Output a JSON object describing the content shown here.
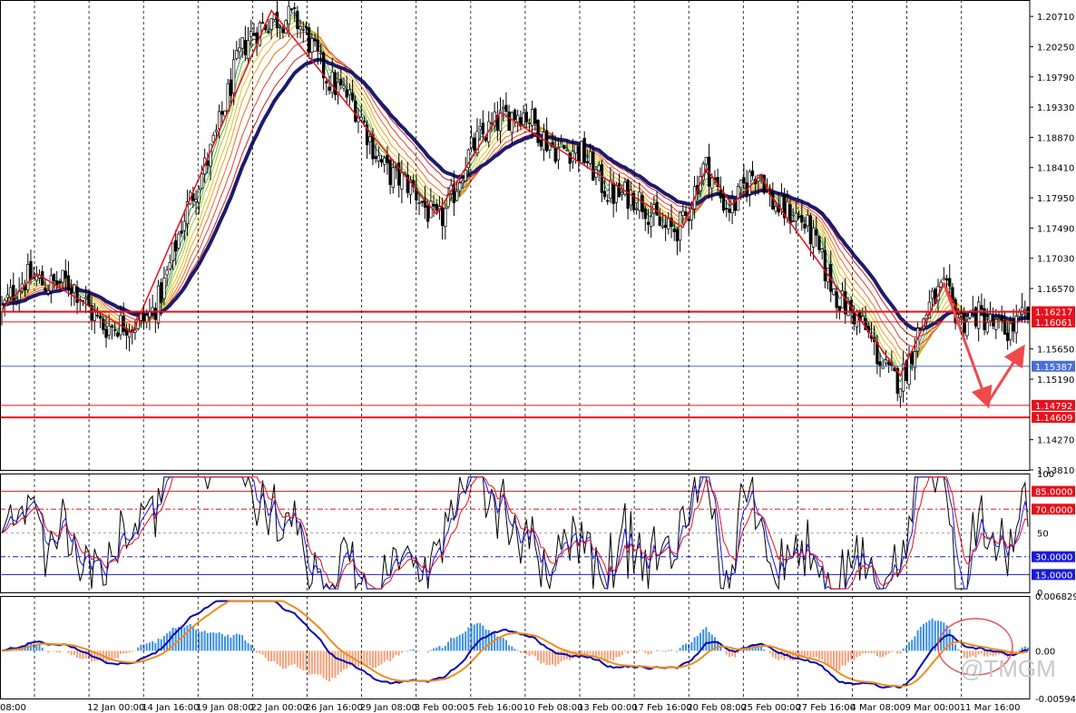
{
  "watermark": "@TMGM",
  "chart_data": {
    "type": "candlestick",
    "price_pane": {
      "ylim": [
        1.1381,
        1.2096
      ],
      "y_ticks": [
        "1.20710",
        "1.20250",
        "1.19790",
        "1.19330",
        "1.18870",
        "1.18410",
        "1.17950",
        "1.17490",
        "1.17030",
        "1.16570",
        "1.15650",
        "1.15190",
        "1.14270",
        "1.13810"
      ],
      "horizontal_levels": [
        {
          "label": "1.16217",
          "value": 1.16217,
          "color": "#e8101b",
          "style": "solid-bold"
        },
        {
          "label": "1.16061",
          "value": 1.16061,
          "color": "#e8101b",
          "style": "solid"
        },
        {
          "label": "1.15387",
          "value": 1.15387,
          "color": "#4a6fd8",
          "style": "solid-thin"
        },
        {
          "label": "1.14792",
          "value": 1.14792,
          "color": "#e8101b",
          "style": "solid"
        },
        {
          "label": "1.14609",
          "value": 1.14609,
          "color": "#e8101b",
          "style": "solid-bold"
        }
      ],
      "zigzag_path": [
        [
          0,
          1.1625
        ],
        [
          12,
          1.168
        ],
        [
          45,
          1.159
        ],
        [
          93,
          1.208
        ],
        [
          150,
          1.177
        ],
        [
          172,
          1.1925
        ],
        [
          235,
          1.175
        ],
        [
          243,
          1.184
        ],
        [
          252,
          1.1785
        ],
        [
          262,
          1.183
        ],
        [
          265,
          1.18
        ],
        [
          310,
          1.1525
        ],
        [
          325,
          1.1665
        ],
        [
          332,
          1.1605
        ]
      ],
      "projection_arrows": [
        {
          "from": [
            325,
            1.1665
          ],
          "to": [
            340,
            1.1482
          ]
        },
        {
          "from": [
            340,
            1.1482
          ],
          "to": [
            352,
            1.1565
          ]
        }
      ],
      "ma_main_color": "#1b1b6e",
      "ribbon_colors": [
        "#2e8b57",
        "#66b032",
        "#a8c83a",
        "#e0c020",
        "#f0a020",
        "#e87020",
        "#e04030",
        "#c82020"
      ]
    },
    "rsi_pane": {
      "ylim": [
        0,
        100
      ],
      "y_ticks": [
        "100",
        "50",
        "0"
      ],
      "levels": [
        {
          "label": "85.0000",
          "value": 85,
          "color": "#e8101b",
          "style": "solid"
        },
        {
          "label": "70.0000",
          "value": 70,
          "color": "#e8101b",
          "style": "dashdot"
        },
        {
          "label": "30.0000",
          "value": 30,
          "color": "#1a1adc",
          "style": "dashdot"
        },
        {
          "label": "15.0000",
          "value": 15,
          "color": "#1a1adc",
          "style": "solid"
        }
      ],
      "series": [
        {
          "name": "fast",
          "color": "#000000"
        },
        {
          "name": "mid",
          "color": "#1a1adc"
        },
        {
          "name": "slow",
          "color": "#e8101b"
        }
      ]
    },
    "macd_pane": {
      "ylim": [
        -0.00594,
        0.006829
      ],
      "y_ticks": [
        "0.0068290",
        "0.00",
        "-0.0059400"
      ],
      "positive_color": "#3a8ee8",
      "negative_color": "#f4a07a",
      "macd_line_color": "#0a0aaa",
      "signal_line_color": "#f08c1e",
      "highlight_circle_color": "#e8505a"
    },
    "x_ticks": [
      "08:00",
      "12 Jan 00:00",
      "14 Jan 16:00",
      "19 Jan 08:00",
      "22 Jan 00:00",
      "26 Jan 16:00",
      "29 Jan 08:00",
      "3 Feb 00:00",
      "5 Feb 16:00",
      "10 Feb 08:00",
      "13 Feb 00:00",
      "17 Feb 16:00",
      "20 Feb 08:00",
      "25 Feb 00:00",
      "27 Feb 16:00",
      "4 Mar 08:00",
      "9 Mar 00:00",
      "11 Mar 16:00"
    ],
    "grid": true
  }
}
